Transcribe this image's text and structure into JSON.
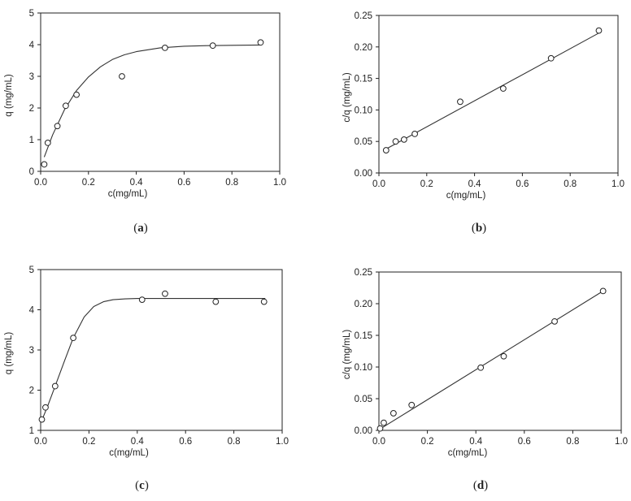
{
  "chart_data": [
    {
      "type": "scatter",
      "panel_label": "(a)",
      "panel_letter": "a",
      "xlabel": "c(mg/mL)",
      "ylabel": "q (mg/mL)",
      "xlim": [
        0,
        1.0
      ],
      "ylim": [
        0,
        5
      ],
      "xticks": [
        "0.0",
        "0.2",
        "0.4",
        "0.6",
        "0.8",
        "1.0"
      ],
      "yticks": [
        "0",
        "1",
        "2",
        "3",
        "4",
        "5"
      ],
      "grid": false,
      "legend": "none",
      "series": [
        {
          "kind": "points",
          "x": [
            0.015,
            0.03,
            0.07,
            0.105,
            0.15,
            0.34,
            0.52,
            0.72,
            0.92
          ],
          "y": [
            0.22,
            0.9,
            1.43,
            2.07,
            2.42,
            3.0,
            3.9,
            3.97,
            4.07
          ]
        },
        {
          "kind": "fit-curve",
          "x": [
            0.015,
            0.05,
            0.1,
            0.15,
            0.2,
            0.25,
            0.3,
            0.35,
            0.4,
            0.5,
            0.6,
            0.7,
            0.8,
            0.92
          ],
          "y": [
            0.45,
            1.15,
            1.95,
            2.55,
            2.98,
            3.3,
            3.53,
            3.68,
            3.78,
            3.9,
            3.95,
            3.97,
            3.98,
            3.99
          ]
        }
      ]
    },
    {
      "type": "scatter",
      "panel_label": "(b)",
      "panel_letter": "b",
      "xlabel": "c(mg/mL)",
      "ylabel": "c/q (mg/mL)",
      "xlim": [
        0,
        1.0
      ],
      "ylim": [
        0,
        0.25
      ],
      "xticks": [
        "0.0",
        "0.2",
        "0.4",
        "0.6",
        "0.8",
        "1.0"
      ],
      "yticks": [
        "0.00",
        "0.05",
        "0.10",
        "0.15",
        "0.20",
        "0.25"
      ],
      "grid": false,
      "legend": "none",
      "series": [
        {
          "kind": "points",
          "x": [
            0.03,
            0.07,
            0.105,
            0.15,
            0.34,
            0.52,
            0.72,
            0.92
          ],
          "y": [
            0.036,
            0.05,
            0.053,
            0.062,
            0.113,
            0.134,
            0.182,
            0.226
          ]
        },
        {
          "kind": "fit-line",
          "x": [
            0.03,
            0.92
          ],
          "y": [
            0.038,
            0.222
          ]
        }
      ]
    },
    {
      "type": "scatter",
      "panel_label": "(c)",
      "panel_letter": "c",
      "xlabel": "c(mg/mL)",
      "ylabel": "q (mg/mL)",
      "xlim": [
        0,
        1.0
      ],
      "ylim": [
        1,
        5
      ],
      "xticks": [
        "0.0",
        "0.2",
        "0.4",
        "0.6",
        "0.8",
        "1.0"
      ],
      "yticks": [
        "1",
        "2",
        "3",
        "4",
        "5"
      ],
      "grid": false,
      "legend": "none",
      "series": [
        {
          "kind": "points",
          "x": [
            0.005,
            0.02,
            0.06,
            0.135,
            0.42,
            0.515,
            0.725,
            0.925
          ],
          "y": [
            1.27,
            1.57,
            2.1,
            3.3,
            4.25,
            4.4,
            4.2,
            4.2
          ]
        },
        {
          "kind": "fit-curve",
          "x": [
            0.005,
            0.03,
            0.06,
            0.1,
            0.135,
            0.18,
            0.22,
            0.26,
            0.3,
            0.35,
            0.4,
            0.5,
            0.7,
            0.93
          ],
          "y": [
            1.25,
            1.62,
            2.1,
            2.75,
            3.3,
            3.82,
            4.08,
            4.2,
            4.25,
            4.27,
            4.28,
            4.28,
            4.28,
            4.28
          ]
        }
      ]
    },
    {
      "type": "scatter",
      "panel_label": "(d)",
      "panel_letter": "d",
      "xlabel": "c(mg/mL)",
      "ylabel": "c/q (mg/mL)",
      "xlim": [
        0,
        1.0
      ],
      "ylim": [
        0,
        0.25
      ],
      "xticks": [
        "0.0",
        "0.2",
        "0.4",
        "0.6",
        "0.8",
        "1.0"
      ],
      "yticks": [
        "0.00",
        "0.05",
        "0.10",
        "0.15",
        "0.20",
        "0.25"
      ],
      "grid": false,
      "legend": "none",
      "series": [
        {
          "kind": "points",
          "x": [
            0.005,
            0.02,
            0.06,
            0.135,
            0.42,
            0.515,
            0.725,
            0.925
          ],
          "y": [
            0.003,
            0.012,
            0.027,
            0.04,
            0.099,
            0.117,
            0.172,
            0.22
          ]
        },
        {
          "kind": "fit-line",
          "x": [
            0.0,
            0.925
          ],
          "y": [
            0.001,
            0.22
          ]
        }
      ]
    }
  ]
}
